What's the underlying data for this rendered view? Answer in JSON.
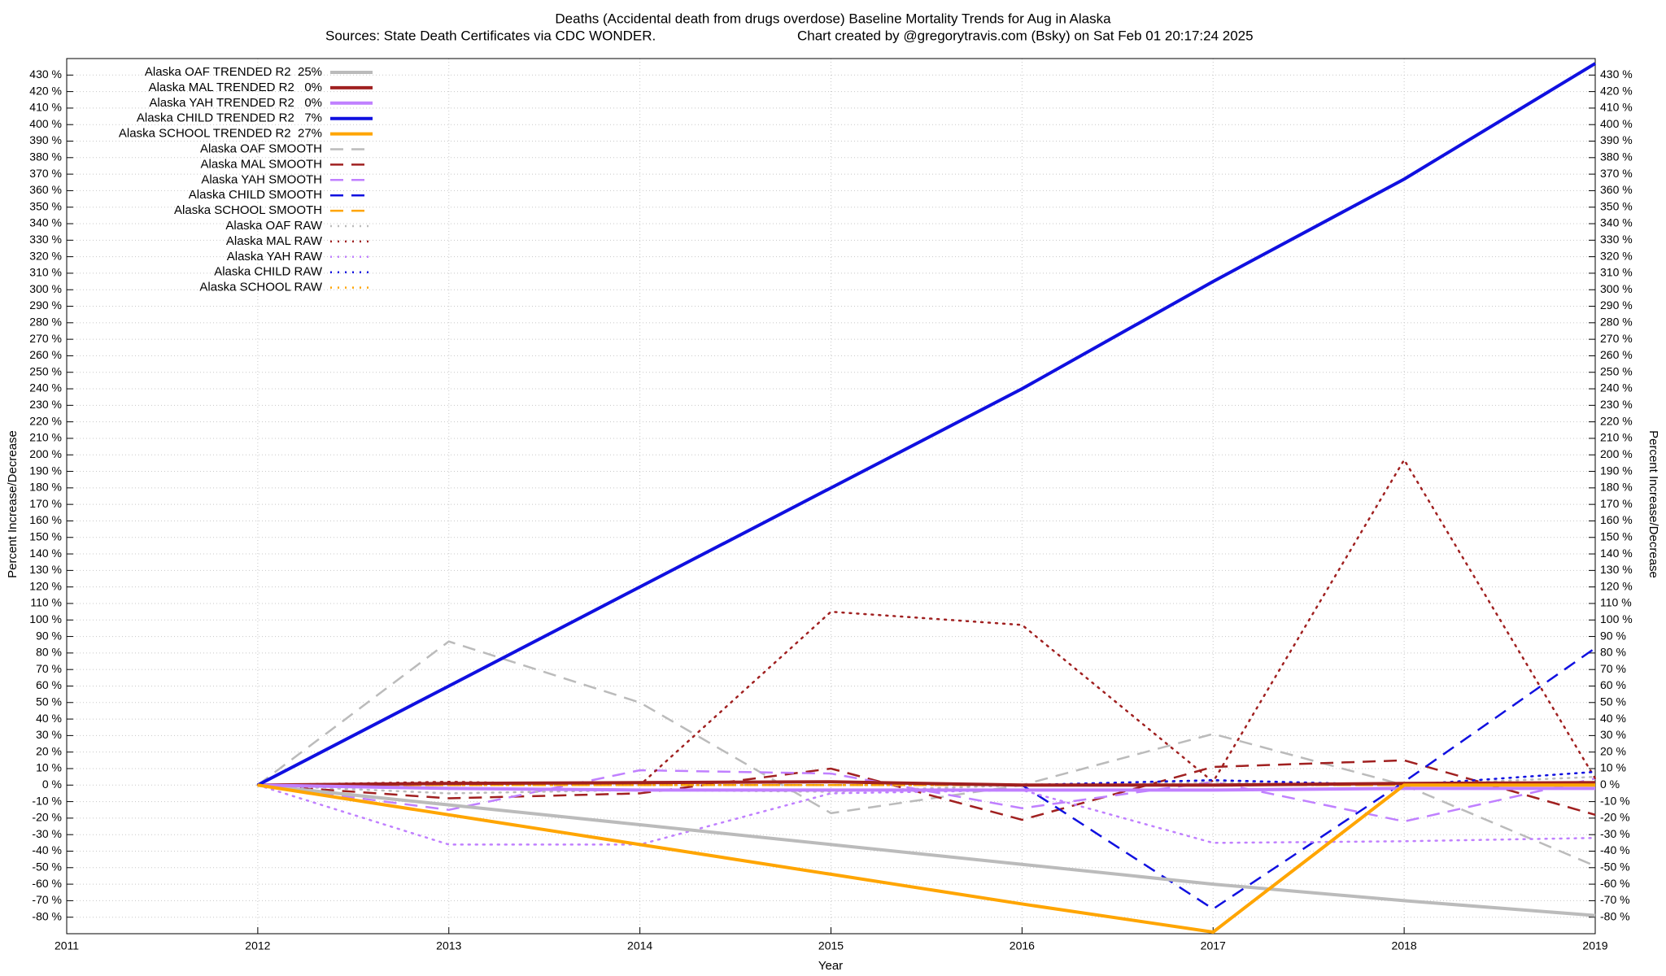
{
  "chart_data": {
    "type": "line",
    "title": "Deaths (Accidental death from drugs overdose)  Baseline Mortality Trends for Aug in Alaska",
    "subtitle": "Sources: State Death Certificates via CDC WONDER.",
    "credit": "Chart created by @gregorytravis.com (Bsky) on Sat Feb 01 20:17:24 2025",
    "x_label": "Year",
    "y_label": "Percent Increase/Decrease",
    "y2_label": "Percent Increase/Decrease",
    "x": [
      2012,
      2013,
      2014,
      2015,
      2016,
      2017,
      2018,
      2019
    ],
    "xlim": [
      2011,
      2019
    ],
    "xticks": [
      2011,
      2012,
      2013,
      2014,
      2015,
      2016,
      2017,
      2018,
      2019
    ],
    "ylim": [
      -90,
      440
    ],
    "y2lim": [
      -90,
      440
    ],
    "grid": true,
    "legend": "top-left",
    "yticks": [
      {
        "value": -80,
        "label": "-80 %"
      },
      {
        "value": -70,
        "label": "-70 %"
      },
      {
        "value": -60,
        "label": "-60 %"
      },
      {
        "value": -50,
        "label": "-50 %"
      },
      {
        "value": -40,
        "label": "-40 %"
      },
      {
        "value": -30,
        "label": "-30 %"
      },
      {
        "value": -20,
        "label": "-20 %"
      },
      {
        "value": -10,
        "label": "-10 %"
      },
      {
        "value": 0,
        "label": "0 %"
      },
      {
        "value": 10,
        "label": "10 %"
      },
      {
        "value": 20,
        "label": "20 %"
      },
      {
        "value": 30,
        "label": "30 %"
      },
      {
        "value": 40,
        "label": "40 %"
      },
      {
        "value": 50,
        "label": "50 %"
      },
      {
        "value": 60,
        "label": "60 %"
      },
      {
        "value": 70,
        "label": "70 %"
      },
      {
        "value": 80,
        "label": "80 %"
      },
      {
        "value": 90,
        "label": "90 %"
      },
      {
        "value": 100,
        "label": "100 %"
      },
      {
        "value": 110,
        "label": "110 %"
      },
      {
        "value": 120,
        "label": "120 %"
      },
      {
        "value": 130,
        "label": "130 %"
      },
      {
        "value": 140,
        "label": "140 %"
      },
      {
        "value": 150,
        "label": "150 %"
      },
      {
        "value": 160,
        "label": "160 %"
      },
      {
        "value": 170,
        "label": "170 %"
      },
      {
        "value": 180,
        "label": "180 %"
      },
      {
        "value": 190,
        "label": "190 %"
      },
      {
        "value": 200,
        "label": "200 %"
      },
      {
        "value": 210,
        "label": "210 %"
      },
      {
        "value": 220,
        "label": "220 %"
      },
      {
        "value": 230,
        "label": "230 %"
      },
      {
        "value": 240,
        "label": "240 %"
      },
      {
        "value": 250,
        "label": "250 %"
      },
      {
        "value": 260,
        "label": "260 %"
      },
      {
        "value": 270,
        "label": "270 %"
      },
      {
        "value": 280,
        "label": "280 %"
      },
      {
        "value": 290,
        "label": "290 %"
      },
      {
        "value": 300,
        "label": "300 %"
      },
      {
        "value": 310,
        "label": "310 %"
      },
      {
        "value": 320,
        "label": "320 %"
      },
      {
        "value": 330,
        "label": "330 %"
      },
      {
        "value": 340,
        "label": "340 %"
      },
      {
        "value": 350,
        "label": "350 %"
      },
      {
        "value": 360,
        "label": "360 %"
      },
      {
        "value": 370,
        "label": "370 %"
      },
      {
        "value": 380,
        "label": "380 %"
      },
      {
        "value": 390,
        "label": "390 %"
      },
      {
        "value": 400,
        "label": "400 %"
      },
      {
        "value": 410,
        "label": "410 %"
      },
      {
        "value": 420,
        "label": "420 %"
      },
      {
        "value": 430,
        "label": "430 %"
      }
    ],
    "y2ticks": [
      {
        "value": -80,
        "label": "-80 %"
      },
      {
        "value": -70,
        "label": "-70 %"
      },
      {
        "value": -60,
        "label": "-60 %"
      },
      {
        "value": -50,
        "label": "-50 %"
      },
      {
        "value": -40,
        "label": "-40 %"
      },
      {
        "value": -30,
        "label": "-30 %"
      },
      {
        "value": -20,
        "label": "-20 %"
      },
      {
        "value": -10,
        "label": "-10 %"
      },
      {
        "value": 0,
        "label": "0 %"
      },
      {
        "value": 10,
        "label": "10 %"
      },
      {
        "value": 20,
        "label": "20 %"
      },
      {
        "value": 30,
        "label": "30 %"
      },
      {
        "value": 40,
        "label": "40 %"
      },
      {
        "value": 50,
        "label": "50 %"
      },
      {
        "value": 60,
        "label": "60 %"
      },
      {
        "value": 70,
        "label": "70 %"
      },
      {
        "value": 80,
        "label": "80 %"
      },
      {
        "value": 90,
        "label": "90 %"
      },
      {
        "value": 100,
        "label": "100 %"
      },
      {
        "value": 110,
        "label": "110 %"
      },
      {
        "value": 120,
        "label": "120 %"
      },
      {
        "value": 130,
        "label": "130 %"
      },
      {
        "value": 140,
        "label": "140 %"
      },
      {
        "value": 150,
        "label": "150 %"
      },
      {
        "value": 160,
        "label": "160 %"
      },
      {
        "value": 170,
        "label": "170 %"
      },
      {
        "value": 180,
        "label": "180 %"
      },
      {
        "value": 190,
        "label": "190 %"
      },
      {
        "value": 200,
        "label": "200 %"
      },
      {
        "value": 210,
        "label": "210 %"
      },
      {
        "value": 220,
        "label": "220 %"
      },
      {
        "value": 230,
        "label": "230 %"
      },
      {
        "value": 240,
        "label": "240 %"
      },
      {
        "value": 250,
        "label": "250 %"
      },
      {
        "value": 260,
        "label": "260 %"
      },
      {
        "value": 270,
        "label": "270 %"
      },
      {
        "value": 280,
        "label": "280 %"
      },
      {
        "value": 290,
        "label": "290 %"
      },
      {
        "value": 300,
        "label": "300 %"
      },
      {
        "value": 310,
        "label": "310 %"
      },
      {
        "value": 320,
        "label": "320 %"
      },
      {
        "value": 330,
        "label": "330 %"
      },
      {
        "value": 340,
        "label": "340 %"
      },
      {
        "value": 350,
        "label": "350 %"
      },
      {
        "value": 360,
        "label": "360 %"
      },
      {
        "value": 370,
        "label": "370 %"
      },
      {
        "value": 380,
        "label": "380 %"
      },
      {
        "value": 390,
        "label": "390 %"
      },
      {
        "value": 400,
        "label": "400 %"
      },
      {
        "value": 410,
        "label": "410 %"
      },
      {
        "value": 420,
        "label": "420 %"
      },
      {
        "value": 430,
        "label": "430 %"
      }
    ],
    "series": [
      {
        "name": "Alaska OAF TRENDED R2  25%",
        "color": "#bbbbbb",
        "line_style": "solid",
        "width": 4,
        "values": [
          0,
          -12,
          -24,
          -36,
          -48,
          -60,
          -70,
          -79
        ]
      },
      {
        "name": "Alaska MAL TRENDED R2   0%",
        "color": "#a02020",
        "line_style": "solid",
        "width": 4,
        "values": [
          0,
          1,
          1.5,
          2,
          0,
          0,
          1,
          1.5
        ]
      },
      {
        "name": "Alaska YAH TRENDED R2   0%",
        "color": "#c080ff",
        "line_style": "solid",
        "width": 4,
        "values": [
          0,
          -2,
          -3,
          -3,
          -3,
          -3,
          -2,
          -2
        ]
      },
      {
        "name": "Alaska CHILD TRENDED R2   7%",
        "color": "#1010e0",
        "line_style": "solid",
        "width": 4,
        "values": [
          0,
          60,
          120,
          180,
          240,
          305,
          367,
          437
        ]
      },
      {
        "name": "Alaska SCHOOL TRENDED R2  27%",
        "color": "#ffa500",
        "line_style": "solid",
        "width": 4,
        "values": [
          0,
          -18,
          -36,
          -54,
          -72,
          -89,
          0,
          0
        ]
      },
      {
        "name": "Alaska OAF SMOOTH",
        "color": "#bbbbbb",
        "line_style": "dashed",
        "width": 2.5,
        "values": [
          0,
          87,
          50,
          -17,
          0,
          31,
          0,
          -49
        ]
      },
      {
        "name": "Alaska MAL SMOOTH",
        "color": "#a02020",
        "line_style": "dashed",
        "width": 2.5,
        "values": [
          0,
          -8,
          -5,
          10,
          -21,
          11,
          15,
          -18
        ]
      },
      {
        "name": "Alaska YAH SMOOTH",
        "color": "#c080ff",
        "line_style": "dashed",
        "width": 2.5,
        "values": [
          0,
          -15,
          9,
          7,
          -14,
          2,
          -22,
          4
        ]
      },
      {
        "name": "Alaska CHILD SMOOTH",
        "color": "#1010e0",
        "line_style": "dashed",
        "width": 2.5,
        "values": [
          0,
          0,
          0,
          0,
          0,
          -75,
          2,
          83
        ]
      },
      {
        "name": "Alaska SCHOOL SMOOTH",
        "color": "#ffa500",
        "line_style": "dashed",
        "width": 2.5,
        "values": [
          0,
          0,
          0,
          0,
          0,
          0,
          0,
          0
        ]
      },
      {
        "name": "Alaska OAF RAW",
        "color": "#bbbbbb",
        "line_style": "dotted",
        "width": 2.5,
        "values": [
          0,
          -5,
          -3,
          -4,
          0,
          2,
          0,
          5
        ]
      },
      {
        "name": "Alaska MAL RAW",
        "color": "#a02020",
        "line_style": "dotted",
        "width": 2.5,
        "values": [
          0,
          2,
          0,
          105,
          97,
          2,
          197,
          4
        ]
      },
      {
        "name": "Alaska YAH RAW",
        "color": "#c080ff",
        "line_style": "dotted",
        "width": 2.5,
        "values": [
          0,
          -36,
          -36,
          -5,
          -3,
          -35,
          -34,
          -32
        ]
      },
      {
        "name": "Alaska CHILD RAW",
        "color": "#1010e0",
        "line_style": "dotted",
        "width": 2.5,
        "values": [
          0,
          0,
          0,
          0,
          0,
          3,
          0,
          8
        ]
      },
      {
        "name": "Alaska SCHOOL RAW",
        "color": "#ffa500",
        "line_style": "dotted",
        "width": 2.5,
        "values": [
          0,
          0,
          0,
          0,
          0,
          0,
          0,
          0
        ]
      }
    ]
  }
}
